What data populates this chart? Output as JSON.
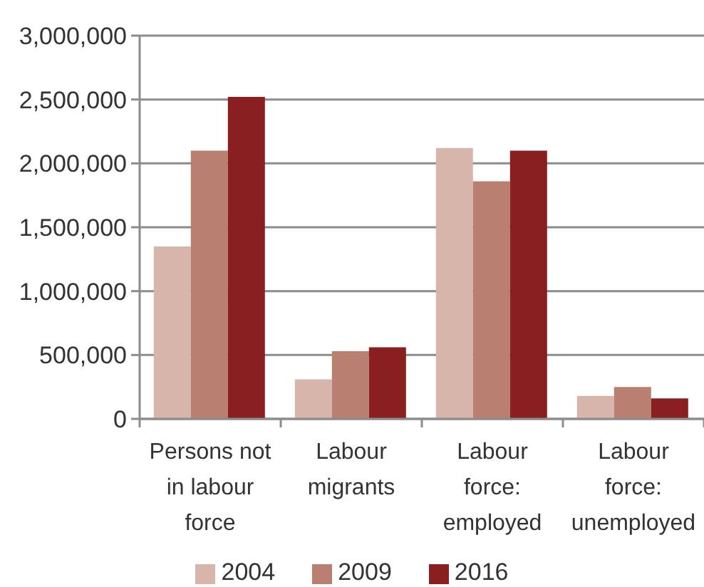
{
  "chart_data": {
    "type": "bar",
    "categories": [
      "Persons not in labour force",
      "Labour migrants",
      "Labour force: employed",
      "Labour force: unemployed"
    ],
    "series": [
      {
        "name": "2004",
        "color": "#d8b5aa",
        "values": [
          1350000,
          310000,
          2120000,
          180000
        ]
      },
      {
        "name": "2009",
        "color": "#b98071",
        "values": [
          2100000,
          530000,
          1860000,
          250000
        ]
      },
      {
        "name": "2016",
        "color": "#8a1f1f",
        "values": [
          2520000,
          560000,
          2100000,
          160000
        ]
      }
    ],
    "ylim": [
      0,
      3000000
    ],
    "yticks": [
      0,
      {
        "value": 500000,
        "label": "500,000"
      },
      {
        "value": 1000000,
        "label": "1,000,000"
      },
      {
        "value": 1500000,
        "label": "1,500,000"
      },
      {
        "value": 2000000,
        "label": "2,000,000"
      },
      {
        "value": 2500000,
        "label": "2,500,000"
      },
      {
        "value": 3000000,
        "label": "3,000,000"
      }
    ],
    "grid": "y",
    "legend": "bottom"
  }
}
